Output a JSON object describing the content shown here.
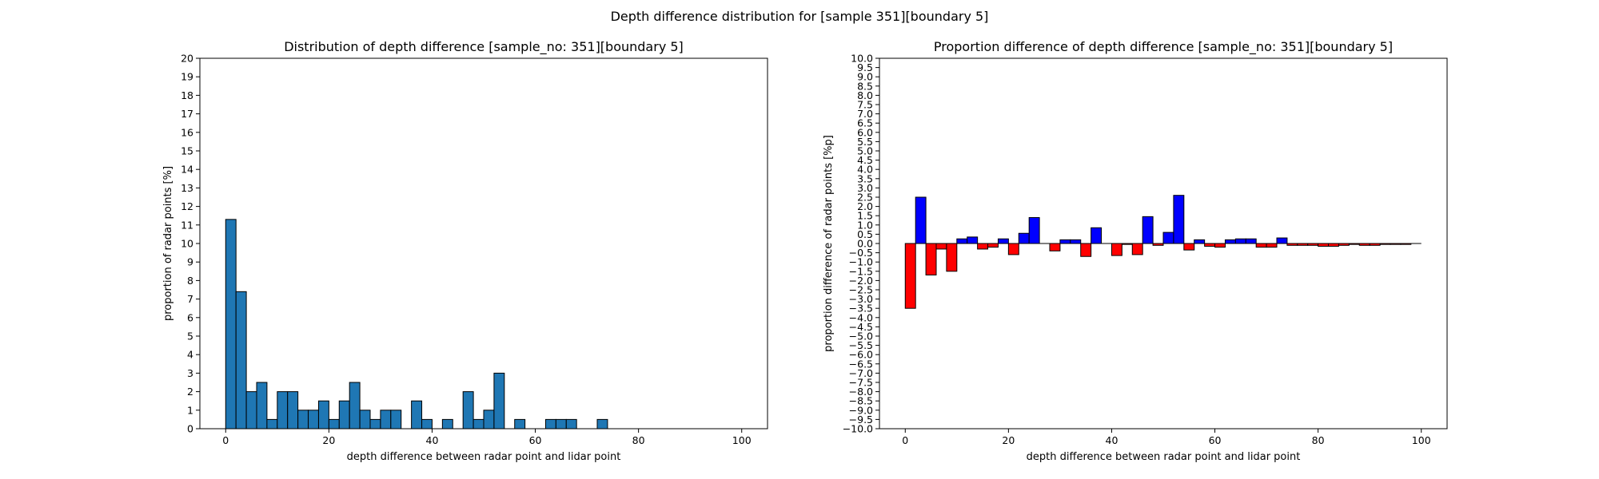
{
  "figure": {
    "suptitle": "Depth difference distribution for [sample 351][boundary 5]"
  },
  "chart_data": [
    {
      "type": "bar",
      "title": "Distribution of depth difference [sample_no: 351][boundary 5]",
      "xlabel": "depth difference between radar point and lidar point",
      "ylabel": "proportion of radar points [%]",
      "xlim": [
        -5,
        105
      ],
      "ylim": [
        0,
        20
      ],
      "xticks": [
        0,
        20,
        40,
        60,
        80,
        100
      ],
      "yticks": [
        0,
        1,
        2,
        3,
        4,
        5,
        6,
        7,
        8,
        9,
        10,
        11,
        12,
        13,
        14,
        15,
        16,
        17,
        18,
        19,
        20
      ],
      "bin_width": 2,
      "bar_color": "#1f77b4",
      "edge_color": "#000000",
      "bins": {
        "x": [
          0,
          2,
          4,
          6,
          8,
          10,
          12,
          14,
          16,
          18,
          20,
          22,
          24,
          26,
          28,
          30,
          32,
          34,
          36,
          38,
          40,
          42,
          44,
          46,
          48,
          50,
          52,
          54,
          56,
          58,
          60,
          62,
          64,
          66,
          68,
          70,
          72,
          74,
          76,
          78,
          80,
          82,
          84,
          86,
          88,
          90,
          92,
          94,
          96,
          98
        ],
        "values": [
          11.3,
          7.4,
          2.0,
          2.5,
          0.5,
          2.0,
          2.0,
          1.0,
          1.0,
          1.5,
          0.5,
          1.5,
          2.5,
          1.0,
          0.5,
          1.0,
          1.0,
          0,
          1.5,
          0.5,
          0,
          0.5,
          0,
          2.0,
          0.5,
          1.0,
          3.0,
          0,
          0.5,
          0,
          0,
          0.5,
          0.5,
          0.5,
          0,
          0,
          0.5,
          0,
          0,
          0,
          0,
          0,
          0,
          0,
          0,
          0,
          0,
          0,
          0,
          0
        ]
      }
    },
    {
      "type": "bar",
      "title": "Proportion difference of depth difference [sample_no: 351][boundary 5]",
      "xlabel": "depth difference between radar point and lidar point",
      "ylabel": "proportion difference of radar points [%p]",
      "xlim": [
        -5,
        105
      ],
      "ylim": [
        -10,
        10
      ],
      "xticks": [
        0,
        20,
        40,
        60,
        80,
        100
      ],
      "ytick_labels": [
        "10.0",
        "9.5",
        "9.0",
        "8.5",
        "8.0",
        "7.5",
        "7.0",
        "6.5",
        "6.0",
        "5.5",
        "5.0",
        "4.5",
        "4.0",
        "3.5",
        "3.0",
        "2.5",
        "2.0",
        "1.5",
        "1.0",
        "0.5",
        "0.0",
        "−0.5",
        "−1.0",
        "−1.5",
        "−2.0",
        "−2.5",
        "−3.0",
        "−3.5",
        "−4.0",
        "−4.5",
        "−5.0",
        "−5.5",
        "−6.0",
        "−6.5",
        "−7.0",
        "−7.5",
        "−8.0",
        "−8.5",
        "−9.0",
        "−9.5",
        "−10.0"
      ],
      "bin_width": 2,
      "positive_color": "#0000ff",
      "negative_color": "#ff0000",
      "edge_color": "#000000",
      "bins": {
        "x": [
          0,
          2,
          4,
          6,
          8,
          10,
          12,
          14,
          16,
          18,
          20,
          22,
          24,
          26,
          28,
          30,
          32,
          34,
          36,
          38,
          40,
          42,
          44,
          46,
          48,
          50,
          52,
          54,
          56,
          58,
          60,
          62,
          64,
          66,
          68,
          70,
          72,
          74,
          76,
          78,
          80,
          82,
          84,
          86,
          88,
          90,
          92,
          94,
          96,
          98
        ],
        "values": [
          -3.5,
          2.5,
          -1.7,
          -0.3,
          -1.5,
          0.25,
          0.35,
          -0.3,
          -0.2,
          0.25,
          -0.6,
          0.55,
          1.4,
          0,
          -0.4,
          0.2,
          0.2,
          -0.7,
          0.85,
          0,
          -0.65,
          -0.05,
          -0.6,
          1.45,
          -0.1,
          0.6,
          2.6,
          -0.35,
          0.2,
          -0.15,
          -0.2,
          0.2,
          0.25,
          0.25,
          -0.2,
          -0.2,
          0.3,
          -0.1,
          -0.1,
          -0.1,
          -0.15,
          -0.15,
          -0.1,
          -0.05,
          -0.1,
          -0.1,
          -0.05,
          -0.05,
          -0.05,
          0
        ]
      }
    }
  ]
}
